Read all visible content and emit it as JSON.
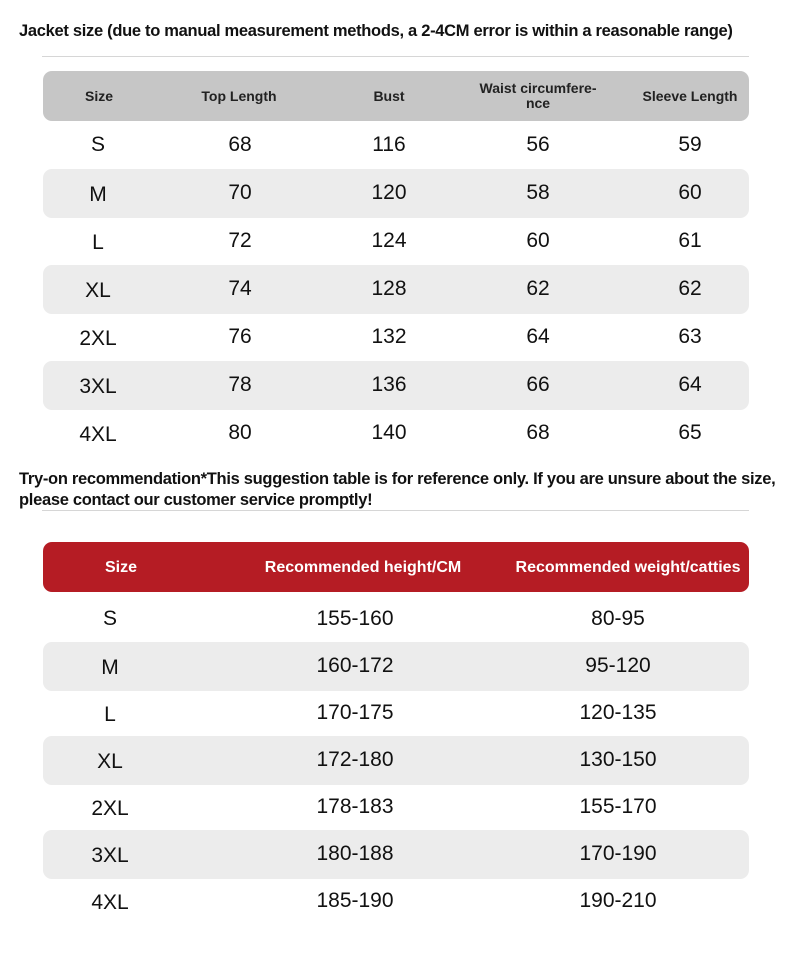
{
  "jacket": {
    "title": "Jacket size (due to manual measurement methods, a 2-4CM error is within a reasonable range)",
    "columns": [
      "Size",
      "Top Length",
      "Bust",
      "Waist circumfere-\nnce",
      "Sleeve Length"
    ],
    "rows": [
      [
        "S",
        "68",
        "116",
        "56",
        "59"
      ],
      [
        "M",
        "70",
        "120",
        "58",
        "60"
      ],
      [
        "L",
        "72",
        "124",
        "60",
        "61"
      ],
      [
        "XL",
        "74",
        "128",
        "62",
        "62"
      ],
      [
        "2XL",
        "76",
        "132",
        "64",
        "63"
      ],
      [
        "3XL",
        "78",
        "136",
        "66",
        "64"
      ],
      [
        "4XL",
        "80",
        "140",
        "68",
        "65"
      ]
    ],
    "header_color": "#c6c6c6",
    "stripe_color": "#ececec"
  },
  "recommendation": {
    "title": "Try-on recommendation*This suggestion table is for reference only. If you are unsure about the size, please contact our customer service promptly!",
    "columns": [
      "Size",
      "Recommended height/CM",
      "Recommended weight/catties"
    ],
    "rows": [
      [
        "S",
        "155-160",
        "80-95"
      ],
      [
        "M",
        "160-172",
        "95-120"
      ],
      [
        "L",
        "170-175",
        "120-135"
      ],
      [
        "XL",
        "172-180",
        "130-150"
      ],
      [
        "2XL",
        "178-183",
        "155-170"
      ],
      [
        "3XL",
        "180-188",
        "170-190"
      ],
      [
        "4XL",
        "185-190",
        "190-210"
      ]
    ],
    "header_color": "#b51c24",
    "stripe_color": "#ececec"
  }
}
